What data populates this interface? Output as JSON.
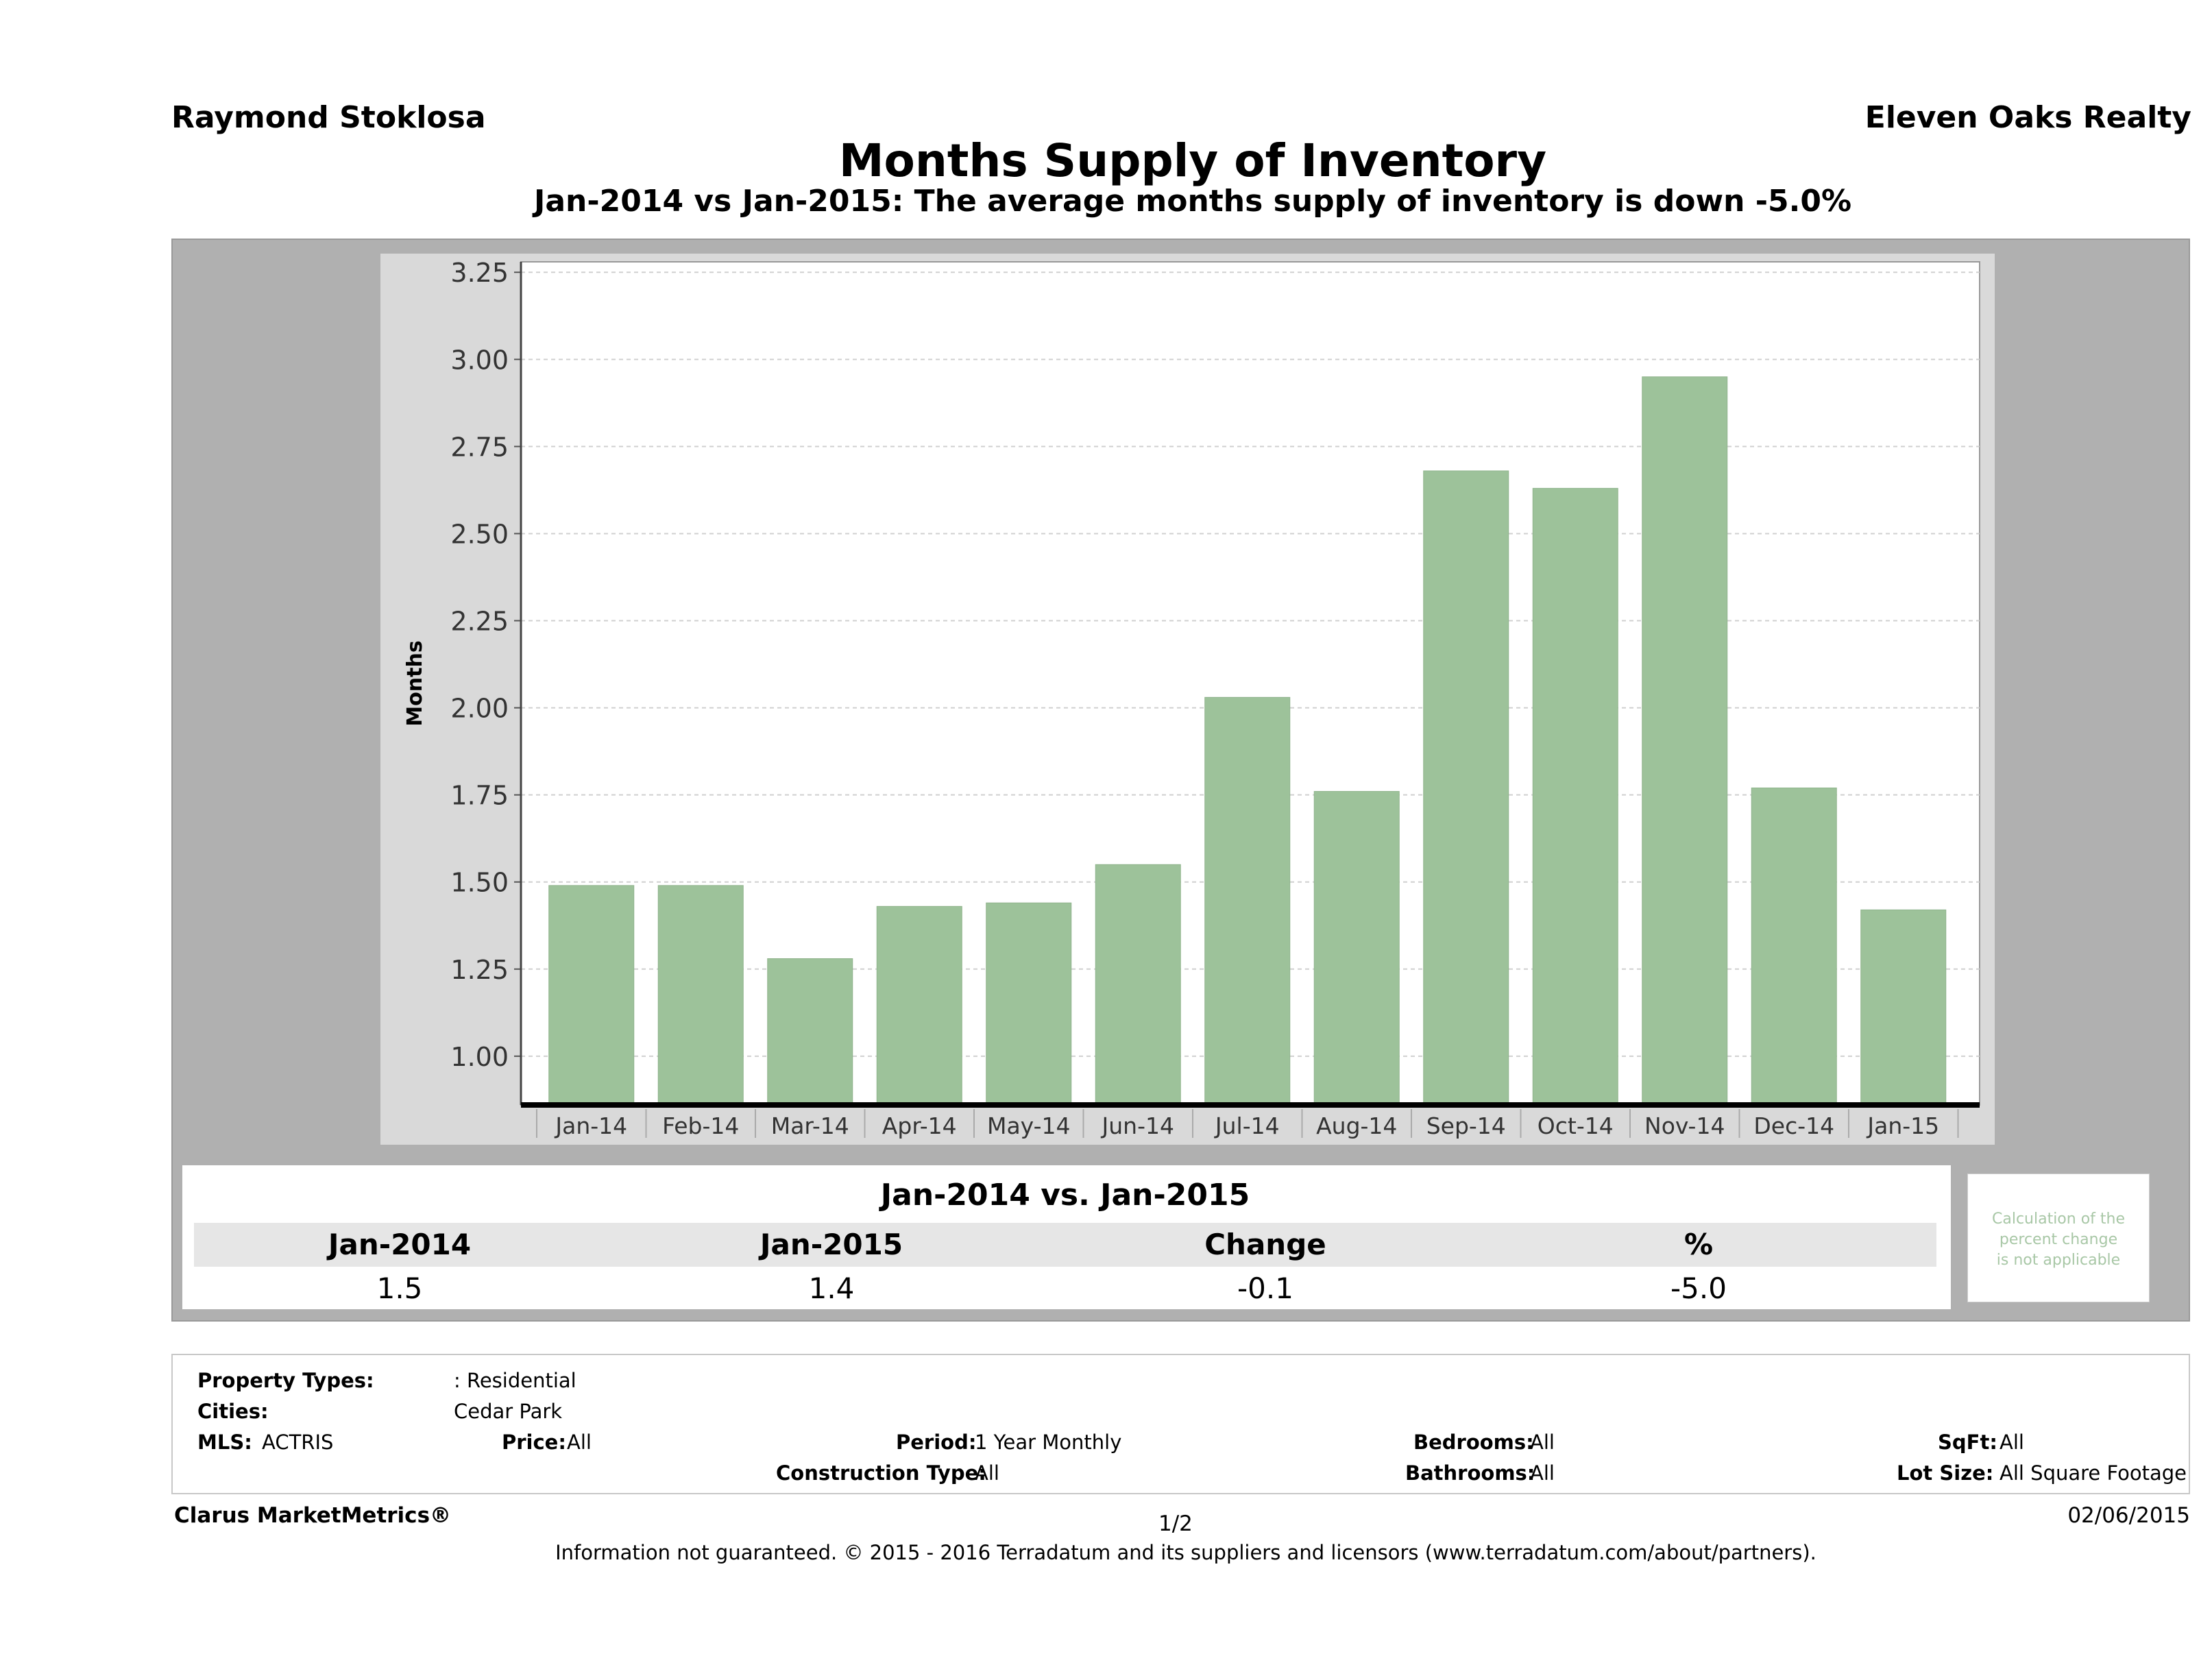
{
  "header": {
    "agent": "Raymond Stoklosa",
    "broker": "Eleven Oaks Realty",
    "title": "Months Supply of Inventory",
    "subtitle": "Jan-2014 vs Jan-2015: The average months supply of inventory is down -5.0%"
  },
  "chart_data": {
    "type": "bar",
    "title": "Months Supply of Inventory",
    "ylabel": "Months",
    "xlabel": "",
    "categories": [
      "Jan-14",
      "Feb-14",
      "Mar-14",
      "Apr-14",
      "May-14",
      "Jun-14",
      "Jul-14",
      "Aug-14",
      "Sep-14",
      "Oct-14",
      "Nov-14",
      "Dec-14",
      "Jan-15"
    ],
    "values": [
      1.49,
      1.49,
      1.28,
      1.43,
      1.44,
      1.55,
      2.03,
      1.76,
      2.68,
      2.63,
      2.95,
      1.77,
      1.42
    ],
    "ylim": [
      0.86,
      3.28
    ],
    "yticks": [
      "1.00",
      "1.25",
      "1.50",
      "1.75",
      "2.00",
      "2.25",
      "2.50",
      "2.75",
      "3.00",
      "3.25"
    ],
    "grid": true,
    "bar_color": "#9dc29a"
  },
  "comparison": {
    "heading": "Jan-2014 vs. Jan-2015",
    "columns": [
      "Jan-2014",
      "Jan-2015",
      "Change",
      "%"
    ],
    "values": [
      "1.5",
      "1.4",
      "-0.1",
      "-5.0"
    ],
    "note": [
      "Calculation of the",
      "percent change",
      "is not applicable"
    ]
  },
  "criteria": {
    "property_types_label": "Property Types:",
    "property_types_value": ": Residential",
    "cities_label": "Cities:",
    "cities_value": "Cedar Park",
    "mls_label": "MLS:",
    "mls_value": "ACTRIS",
    "price_label": "Price:",
    "price_value": "All",
    "period_label": "Period:",
    "period_value": "1 Year Monthly",
    "construction_label": "Construction Type:",
    "construction_value": "All",
    "bedrooms_label": "Bedrooms:",
    "bedrooms_value": "All",
    "bathrooms_label": "Bathrooms:",
    "bathrooms_value": "All",
    "sqft_label": "SqFt:",
    "sqft_value": "All",
    "lotsize_label": "Lot Size:",
    "lotsize_value": "All Square Footage"
  },
  "footer": {
    "brand": "Clarus MarketMetrics®",
    "page": "1/2",
    "date": "02/06/2015",
    "disclaimer": "Information not guaranteed. © 2015 - 2016 Terradatum and its suppliers and licensors (www.terradatum.com/about/partners)."
  }
}
